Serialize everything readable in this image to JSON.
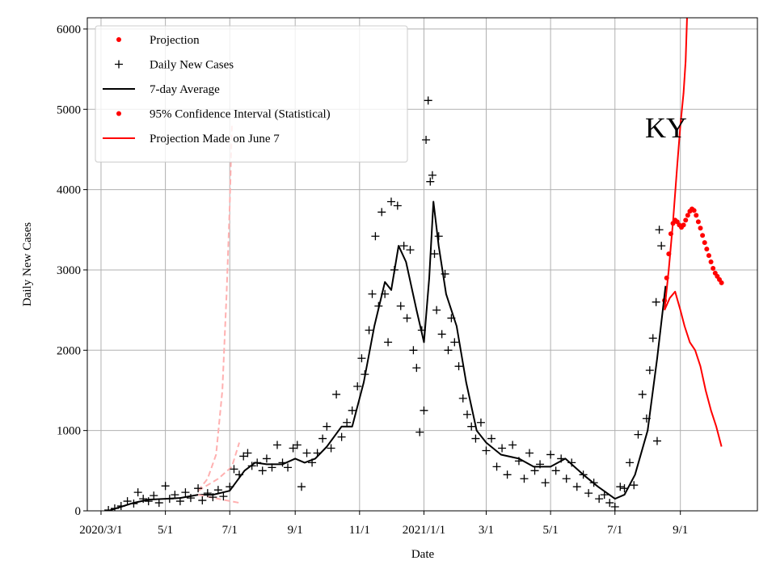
{
  "chart_data": {
    "type": "line",
    "annotation": "KY",
    "x_label": "Date",
    "y_label": "Daily New Cases",
    "xlim": [
      "2020-02-17",
      "2021-11-13"
    ],
    "ylim": [
      0,
      6140
    ],
    "xticks": [
      {
        "value": "2020-03-01",
        "label": "2020/3/1"
      },
      {
        "value": "2020-05-01",
        "label": "5/1"
      },
      {
        "value": "2020-07-01",
        "label": "7/1"
      },
      {
        "value": "2020-09-01",
        "label": "9/1"
      },
      {
        "value": "2020-11-01",
        "label": "11/1"
      },
      {
        "value": "2021-01-01",
        "label": "2021/1/1"
      },
      {
        "value": "2021-03-01",
        "label": "3/1"
      },
      {
        "value": "2021-05-01",
        "label": "5/1"
      },
      {
        "value": "2021-07-01",
        "label": "7/1"
      },
      {
        "value": "2021-09-01",
        "label": "9/1"
      }
    ],
    "yticks": [
      0,
      1000,
      2000,
      3000,
      4000,
      5000,
      6000
    ],
    "grid": true,
    "legend_position": "upper left",
    "series": [
      {
        "name": "Projection",
        "color": "#ff0000",
        "style": "dot",
        "x": [
          "2021-08-17",
          "2021-08-19",
          "2021-08-21",
          "2021-08-23",
          "2021-08-25",
          "2021-08-27",
          "2021-08-29",
          "2021-08-31",
          "2021-09-02",
          "2021-09-04",
          "2021-09-06",
          "2021-09-08",
          "2021-09-10",
          "2021-09-12",
          "2021-09-14",
          "2021-09-16",
          "2021-09-18",
          "2021-09-20",
          "2021-09-22",
          "2021-09-24",
          "2021-09-26",
          "2021-09-28",
          "2021-09-30",
          "2021-10-02",
          "2021-10-04",
          "2021-10-06",
          "2021-10-08",
          "2021-10-10"
        ],
        "values": [
          2620,
          2900,
          3200,
          3450,
          3580,
          3620,
          3600,
          3560,
          3530,
          3560,
          3620,
          3680,
          3730,
          3760,
          3740,
          3680,
          3600,
          3520,
          3430,
          3340,
          3260,
          3180,
          3100,
          3020,
          2960,
          2920,
          2880,
          2840
        ]
      },
      {
        "name": "Daily New Cases",
        "color": "#000000",
        "style": "plus",
        "x": [
          "2020-03-08",
          "2020-03-14",
          "2020-03-20",
          "2020-03-26",
          "2020-04-01",
          "2020-04-05",
          "2020-04-10",
          "2020-04-15",
          "2020-04-20",
          "2020-04-25",
          "2020-05-01",
          "2020-05-05",
          "2020-05-10",
          "2020-05-15",
          "2020-05-20",
          "2020-05-25",
          "2020-06-01",
          "2020-06-05",
          "2020-06-10",
          "2020-06-15",
          "2020-06-20",
          "2020-06-25",
          "2020-07-01",
          "2020-07-05",
          "2020-07-10",
          "2020-07-14",
          "2020-07-18",
          "2020-07-22",
          "2020-07-27",
          "2020-08-01",
          "2020-08-05",
          "2020-08-10",
          "2020-08-15",
          "2020-08-20",
          "2020-08-25",
          "2020-08-30",
          "2020-09-03",
          "2020-09-07",
          "2020-09-12",
          "2020-09-17",
          "2020-09-22",
          "2020-09-27",
          "2020-10-01",
          "2020-10-05",
          "2020-10-10",
          "2020-10-15",
          "2020-10-20",
          "2020-10-25",
          "2020-10-30",
          "2020-11-03",
          "2020-11-06",
          "2020-11-10",
          "2020-11-13",
          "2020-11-16",
          "2020-11-19",
          "2020-11-22",
          "2020-11-25",
          "2020-11-28",
          "2020-12-01",
          "2020-12-04",
          "2020-12-07",
          "2020-12-10",
          "2020-12-13",
          "2020-12-16",
          "2020-12-19",
          "2020-12-22",
          "2020-12-25",
          "2020-12-28",
          "2020-12-30",
          "2021-01-01",
          "2021-01-03",
          "2021-01-05",
          "2021-01-07",
          "2021-01-09",
          "2021-01-11",
          "2021-01-13",
          "2021-01-15",
          "2021-01-18",
          "2021-01-21",
          "2021-01-24",
          "2021-01-27",
          "2021-01-30",
          "2021-02-03",
          "2021-02-07",
          "2021-02-11",
          "2021-02-15",
          "2021-02-19",
          "2021-02-24",
          "2021-03-01",
          "2021-03-06",
          "2021-03-11",
          "2021-03-16",
          "2021-03-21",
          "2021-03-26",
          "2021-04-01",
          "2021-04-06",
          "2021-04-11",
          "2021-04-16",
          "2021-04-21",
          "2021-04-26",
          "2021-05-01",
          "2021-05-06",
          "2021-05-11",
          "2021-05-16",
          "2021-05-21",
          "2021-05-26",
          "2021-06-01",
          "2021-06-06",
          "2021-06-11",
          "2021-06-16",
          "2021-06-21",
          "2021-06-26",
          "2021-07-01",
          "2021-07-06",
          "2021-07-10",
          "2021-07-15",
          "2021-07-19",
          "2021-07-23",
          "2021-07-27",
          "2021-07-31",
          "2021-08-03",
          "2021-08-06",
          "2021-08-09",
          "2021-08-10",
          "2021-08-12",
          "2021-08-14"
        ],
        "values": [
          10,
          30,
          60,
          120,
          90,
          230,
          150,
          120,
          190,
          100,
          310,
          150,
          200,
          120,
          230,
          160,
          280,
          130,
          220,
          170,
          260,
          180,
          300,
          520,
          450,
          680,
          720,
          560,
          600,
          500,
          650,
          540,
          820,
          600,
          540,
          780,
          820,
          300,
          720,
          600,
          720,
          900,
          1050,
          780,
          1450,
          920,
          1100,
          1250,
          1550,
          1900,
          1700,
          2250,
          2700,
          3420,
          2550,
          3720,
          2700,
          2100,
          3850,
          3000,
          3800,
          2550,
          3300,
          2400,
          3250,
          2000,
          1780,
          980,
          2250,
          1250,
          4620,
          5110,
          4100,
          4180,
          3200,
          2500,
          3420,
          2200,
          2950,
          2000,
          2400,
          2100,
          1800,
          1400,
          1200,
          1050,
          900,
          1100,
          750,
          900,
          550,
          780,
          450,
          820,
          620,
          400,
          720,
          500,
          580,
          350,
          700,
          500,
          650,
          400,
          600,
          300,
          450,
          220,
          350,
          150,
          200,
          100,
          50,
          300,
          280,
          600,
          320,
          950,
          1450,
          1150,
          1750,
          2150,
          2600,
          870,
          3500,
          3300
        ]
      },
      {
        "name": "7-day Average",
        "color": "#000000",
        "style": "line",
        "x": [
          "2020-03-10",
          "2020-03-20",
          "2020-04-01",
          "2020-04-15",
          "2020-05-01",
          "2020-05-15",
          "2020-06-01",
          "2020-06-15",
          "2020-07-01",
          "2020-07-15",
          "2020-07-25",
          "2020-08-05",
          "2020-08-20",
          "2020-09-01",
          "2020-09-10",
          "2020-09-20",
          "2020-10-01",
          "2020-10-15",
          "2020-10-25",
          "2020-11-05",
          "2020-11-15",
          "2020-11-25",
          "2020-12-01",
          "2020-12-08",
          "2020-12-15",
          "2020-12-25",
          "2021-01-01",
          "2021-01-06",
          "2021-01-10",
          "2021-01-15",
          "2021-01-22",
          "2021-02-01",
          "2021-02-10",
          "2021-02-20",
          "2021-03-01",
          "2021-03-15",
          "2021-04-01",
          "2021-04-15",
          "2021-05-01",
          "2021-05-15",
          "2021-06-01",
          "2021-06-15",
          "2021-07-01",
          "2021-07-10",
          "2021-07-20",
          "2021-08-01",
          "2021-08-10",
          "2021-08-18"
        ],
        "values": [
          10,
          50,
          100,
          140,
          150,
          160,
          200,
          200,
          250,
          500,
          600,
          580,
          580,
          650,
          600,
          650,
          800,
          1050,
          1050,
          1600,
          2300,
          2850,
          2750,
          3300,
          3100,
          2500,
          2100,
          2900,
          3850,
          3300,
          2700,
          2300,
          1600,
          1000,
          850,
          700,
          650,
          550,
          550,
          650,
          450,
          300,
          150,
          200,
          450,
          1000,
          1900,
          2800
        ]
      },
      {
        "name": "95% Confidence Interval (Statistical)",
        "color": "#ff0000",
        "style": "line",
        "legend_marker": "dot",
        "x": [
          "2021-08-17",
          "2021-08-21",
          "2021-08-25",
          "2021-08-29",
          "2021-09-01",
          "2021-09-04",
          "2021-09-06",
          "2021-09-08"
        ],
        "values": [
          2500,
          3000,
          3600,
          4300,
          4800,
          5200,
          5600,
          6400
        ]
      },
      {
        "name": "Projection Made on June 7",
        "color": "#ff0000",
        "style": "line",
        "x": [
          "2021-08-17",
          "2021-08-22",
          "2021-08-27",
          "2021-09-01",
          "2021-09-05",
          "2021-09-10",
          "2021-09-15",
          "2021-09-20",
          "2021-09-25",
          "2021-09-30",
          "2021-10-05",
          "2021-10-10"
        ],
        "values": [
          2500,
          2650,
          2730,
          2500,
          2300,
          2100,
          2000,
          1800,
          1500,
          1250,
          1050,
          800
        ]
      },
      {
        "color": "#ffb0b0",
        "style": "dashed",
        "x": [
          "2020-06-01",
          "2020-06-10",
          "2020-06-18",
          "2020-06-24",
          "2020-06-28",
          "2020-07-01",
          "2020-07-03"
        ],
        "values": [
          250,
          400,
          700,
          1500,
          2700,
          3800,
          4800
        ]
      },
      {
        "color": "#ffb0b0",
        "style": "dashed",
        "x": [
          "2020-06-01",
          "2020-06-20",
          "2020-07-03",
          "2020-07-10"
        ],
        "values": [
          250,
          400,
          550,
          850
        ]
      },
      {
        "color": "#ffb0b0",
        "style": "dashed",
        "x": [
          "2020-06-01",
          "2020-06-20",
          "2020-07-10"
        ],
        "values": [
          200,
          150,
          100
        ]
      }
    ]
  }
}
